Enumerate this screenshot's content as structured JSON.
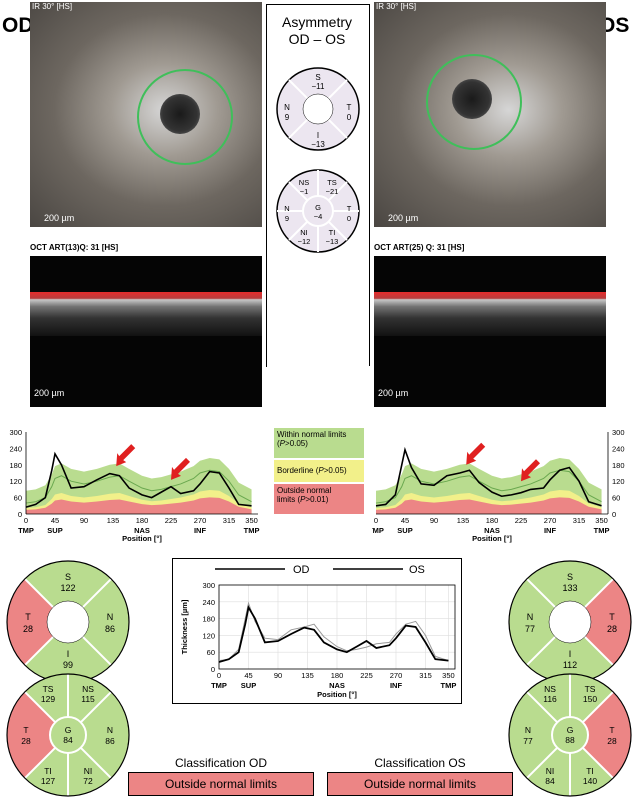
{
  "left_eye": {
    "label": "OD",
    "ir_title": "IR 30° [HS]",
    "scale": "200 µm",
    "oct_title": "OCT ART(13)Q: 31 [HS]",
    "oct_scale": "200 µm"
  },
  "right_eye": {
    "label": "OS",
    "ir_title": "IR 30° [HS]",
    "scale": "200 µm",
    "oct_title": "OCT ART(25) Q: 31 [HS]",
    "oct_scale": "200 µm"
  },
  "asymmetry": {
    "title_line1": "Asymmetry",
    "title_line2": "OD – OS",
    "four_sector": {
      "S": "−11",
      "T": "0",
      "N": "9",
      "I": "−13",
      "S_label": "S",
      "T_label": "T",
      "N_label": "N",
      "I_label": "I"
    },
    "six_sector": {
      "NS_label": "NS",
      "NS": "−1",
      "TS_label": "TS",
      "TS": "−21",
      "N_label": "N",
      "N": "9",
      "G_label": "G",
      "G": "−4",
      "T_label": "T",
      "T": "0",
      "NI_label": "NI",
      "NI": "−12",
      "TI_label": "TI",
      "TI": "−13"
    }
  },
  "legend": {
    "within": "Within normal limits (P>0.05)",
    "borderline": "Borderline (P>0.05)",
    "outside_line1": "Outside normal",
    "outside_line2": "limits (P>0.01)"
  },
  "od_four_sector": {
    "S_label": "S",
    "S": "122",
    "N_label": "N",
    "N": "86",
    "I_label": "I",
    "I": "99",
    "T_label": "T",
    "T": "28"
  },
  "od_six_sector": {
    "TS_label": "TS",
    "TS": "129",
    "NS_label": "NS",
    "NS": "115",
    "T_label": "T",
    "T": "28",
    "G_label": "G",
    "G": "84",
    "N_label": "N",
    "N": "86",
    "TI_label": "TI",
    "TI": "127",
    "NI_label": "NI",
    "NI": "72"
  },
  "os_four_sector": {
    "S_label": "S",
    "S": "133",
    "N_label": "N",
    "N": "77",
    "T_label": "T",
    "T": "28",
    "I_label": "I",
    "I": "112"
  },
  "os_six_sector": {
    "NS_label": "NS",
    "NS": "116",
    "TS_label": "TS",
    "TS": "150",
    "N_label": "N",
    "N": "77",
    "G_label": "G",
    "G": "88",
    "T_label": "T",
    "T": "28",
    "NI_label": "NI",
    "NI": "84",
    "TI_label": "TI",
    "TI": "140"
  },
  "classification": {
    "od_title": "Classification OD",
    "od_value": "Outside normal limits",
    "os_title": "Classification OS",
    "os_value": "Outside normal limits"
  },
  "colors": {
    "green": "#b9dc8f",
    "yellow": "#f2f08a",
    "red": "#ec8585",
    "ring": "#3fbf5a"
  },
  "chart_data": [
    {
      "type": "line",
      "chart": "od_profile",
      "x": [
        0,
        15,
        30,
        40,
        45,
        55,
        70,
        90,
        110,
        130,
        145,
        160,
        180,
        195,
        210,
        225,
        240,
        260,
        270,
        285,
        300,
        315,
        330,
        350
      ],
      "series": [
        {
          "values": [
            25,
            35,
            60,
            160,
            220,
            180,
            95,
            100,
            125,
            148,
            140,
            95,
            70,
            60,
            80,
            100,
            75,
            85,
            110,
            155,
            150,
            95,
            35,
            30
          ]
        }
      ],
      "xlabel": "Position [°]",
      "xticks": [
        0,
        45,
        90,
        135,
        180,
        225,
        270,
        315,
        350
      ],
      "yticks": [
        0,
        30,
        60,
        90,
        120,
        150,
        180,
        210,
        240,
        270,
        300
      ],
      "ylim": [
        0,
        300
      ],
      "region_labels": [
        "TMP",
        "SUP",
        "NAS",
        "INF",
        "TMP"
      ]
    },
    {
      "type": "line",
      "chart": "os_profile",
      "x": [
        0,
        15,
        30,
        40,
        45,
        55,
        70,
        90,
        110,
        130,
        145,
        160,
        180,
        195,
        210,
        225,
        240,
        260,
        270,
        285,
        300,
        315,
        330,
        350
      ],
      "series": [
        {
          "values": [
            30,
            35,
            70,
            180,
            235,
            170,
            110,
            105,
            140,
            150,
            160,
            115,
            80,
            65,
            70,
            78,
            90,
            95,
            125,
            160,
            170,
            120,
            45,
            30
          ]
        }
      ],
      "xlabel": "Position [°]",
      "xticks": [
        0,
        45,
        90,
        135,
        180,
        225,
        270,
        315,
        350
      ],
      "yticks": [
        0,
        30,
        60,
        90,
        120,
        150,
        180,
        210,
        240,
        270,
        300
      ],
      "ylim": [
        0,
        300
      ],
      "region_labels": [
        "TMP",
        "SUP",
        "NAS",
        "INF",
        "TMP"
      ]
    },
    {
      "type": "line",
      "chart": "overlay",
      "legend": [
        "OD",
        "OS"
      ],
      "ylabel": "Thickness [µm]",
      "xlabel": "Position [°]",
      "xticks": [
        0,
        45,
        90,
        135,
        180,
        225,
        270,
        315,
        350
      ],
      "yticks": [
        0,
        60,
        120,
        180,
        240,
        300
      ],
      "ylim": [
        0,
        300
      ],
      "region_labels": [
        "TMP",
        "SUP",
        "NAS",
        "INF",
        "TMP"
      ],
      "x": [
        0,
        15,
        30,
        40,
        45,
        55,
        70,
        90,
        110,
        130,
        145,
        160,
        180,
        195,
        210,
        225,
        240,
        260,
        270,
        285,
        300,
        315,
        330,
        350
      ],
      "series": [
        {
          "name": "OD",
          "values": [
            25,
            35,
            60,
            160,
            220,
            180,
            95,
            100,
            125,
            148,
            140,
            95,
            70,
            60,
            80,
            100,
            75,
            85,
            110,
            155,
            150,
            95,
            35,
            30
          ]
        },
        {
          "name": "OS",
          "values": [
            30,
            35,
            70,
            180,
            235,
            170,
            110,
            105,
            140,
            150,
            160,
            115,
            80,
            65,
            70,
            78,
            90,
            95,
            125,
            160,
            170,
            120,
            45,
            30
          ]
        }
      ]
    }
  ]
}
